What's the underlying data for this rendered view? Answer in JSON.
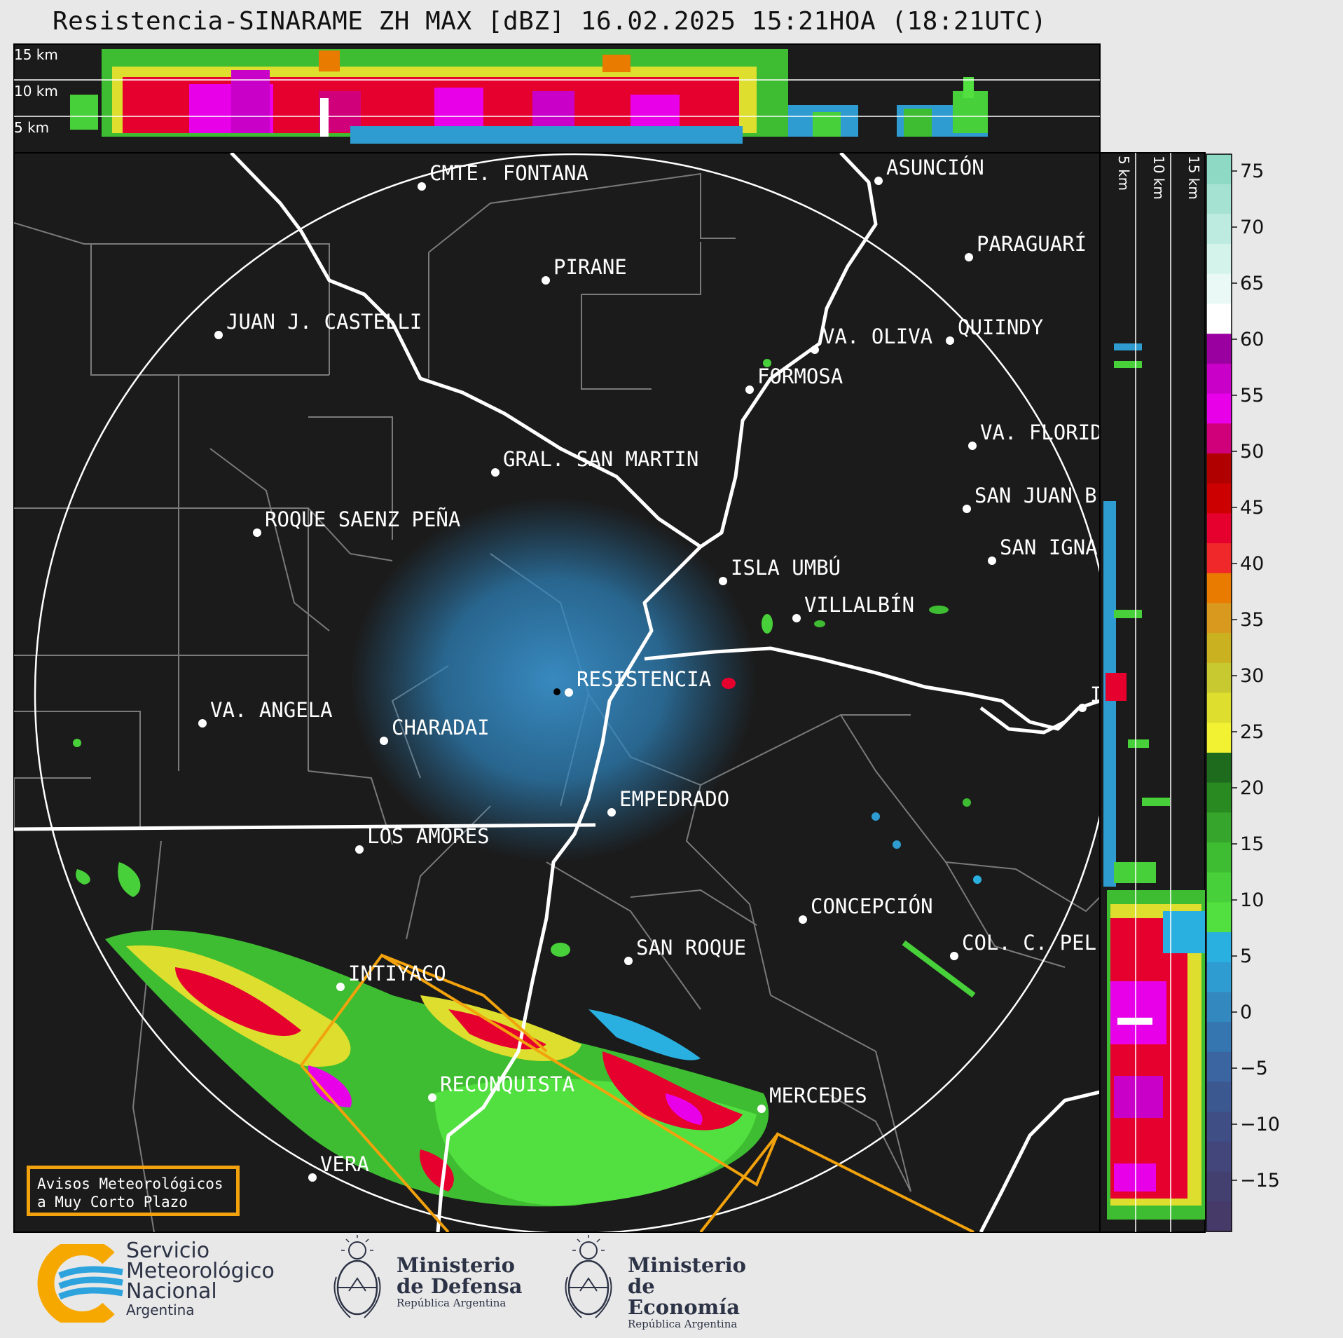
{
  "title": "Resistencia-SINARAME ZH MAX [dBZ] 16.02.2025 15:21HOA (18:21UTC)",
  "cross_section_top": {
    "height_labels": [
      "15 km",
      "10 km",
      "5 km"
    ]
  },
  "cross_section_right": {
    "height_labels": [
      "5 km",
      "10 km",
      "15 km"
    ]
  },
  "colorbar": {
    "unit": "dBZ",
    "ticks": [
      "75",
      "70",
      "65",
      "60",
      "55",
      "50",
      "45",
      "40",
      "35",
      "30",
      "25",
      "20",
      "15",
      "10",
      "5",
      "0",
      "−5",
      "−10",
      "−15"
    ],
    "colors_high_to_low": [
      "#8ed9c4",
      "#a6e2d2",
      "#bdebdf",
      "#d4f3eb",
      "#eaf9f5",
      "#ffffff",
      "#9a00a0",
      "#c800c8",
      "#e800e8",
      "#d0007a",
      "#b00000",
      "#cc0000",
      "#e6002e",
      "#f0282a",
      "#e87b00",
      "#d9981e",
      "#c9b11f",
      "#c8c830",
      "#dede2e",
      "#f2f232",
      "#1e6b1e",
      "#2a8a22",
      "#35a52b",
      "#3fbd32",
      "#48d03a",
      "#52e040",
      "#2ab0e0",
      "#2e9cd0",
      "#3388c0",
      "#3575b0",
      "#3a65a0",
      "#3c5890",
      "#3f4e85",
      "#42467a",
      "#434070",
      "#453a68"
    ]
  },
  "cities": [
    {
      "name": "CMTE. FONTANA"
    },
    {
      "name": "ASUNCIÓN"
    },
    {
      "name": "PARAGUARÍ"
    },
    {
      "name": "PIRANE"
    },
    {
      "name": "JUAN J. CASTELLI"
    },
    {
      "name": "VA. OLIVA"
    },
    {
      "name": "QUIINDY"
    },
    {
      "name": "FORMOSA"
    },
    {
      "name": "VA. FLORIDA"
    },
    {
      "name": "GRAL. SAN MARTIN"
    },
    {
      "name": "SAN JUAN B"
    },
    {
      "name": "ROQUE SAENZ PEÑA"
    },
    {
      "name": "SAN IGNA"
    },
    {
      "name": "ISLA UMBÚ"
    },
    {
      "name": "VILLALBÍN"
    },
    {
      "name": "RESISTENCIA"
    },
    {
      "name": "VA. ANGELA"
    },
    {
      "name": "CHARADAI"
    },
    {
      "name": "IT"
    },
    {
      "name": "EMPEDRADO"
    },
    {
      "name": "LOS AMORES"
    },
    {
      "name": "CONCEPCIÓN"
    },
    {
      "name": "SAN ROQUE"
    },
    {
      "name": "COL. C. PEL"
    },
    {
      "name": "INTIYACO"
    },
    {
      "name": "RECONQUISTA"
    },
    {
      "name": "MERCEDES"
    },
    {
      "name": "VERA"
    }
  ],
  "warnings_box": {
    "line1": "Avisos Meteorológicos",
    "line2": "a Muy Corto Plazo"
  },
  "logos": {
    "smn": {
      "line1": "Servicio",
      "line2": "Meteorológico",
      "line3": "Nacional",
      "country": "Argentina"
    },
    "defensa": {
      "line1": "Ministerio",
      "line2": "de Defensa",
      "sub": "República Argentina"
    },
    "economia": {
      "line1": "Ministerio",
      "line2": "de Economía",
      "sub": "República Argentina"
    }
  },
  "colors": {
    "map_background": "#1b1b1b",
    "page_background": "#e8e8e8",
    "warning_polygon": "#f2a20c",
    "smn_yellow": "#f7a800",
    "smn_blue": "#2da3dd"
  }
}
